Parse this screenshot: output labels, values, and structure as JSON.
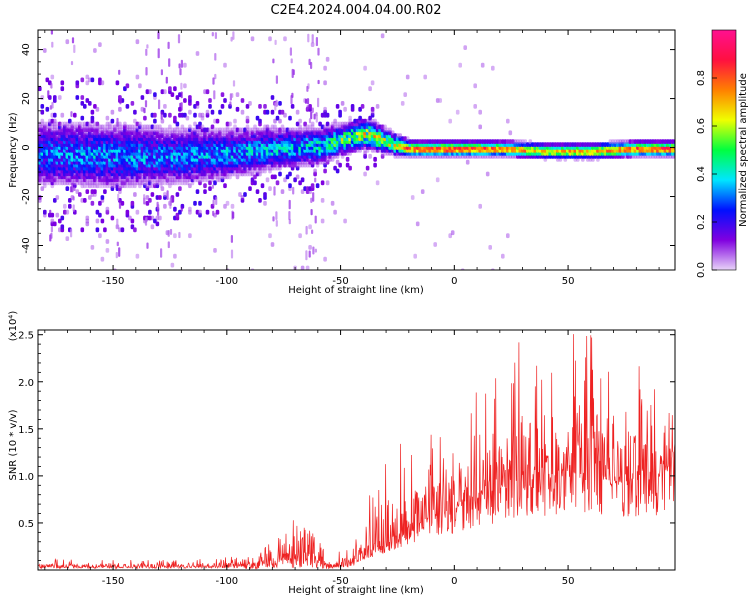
{
  "title": "C2E4.2024.004.04.00.R02",
  "chart_data": [
    {
      "type": "heatmap",
      "xlabel": "Height of straight line (km)",
      "ylabel": "Frequency (Hz)",
      "xlim": [
        -183,
        97
      ],
      "ylim": [
        -50,
        48
      ],
      "xticks": [
        -150,
        -100,
        -50,
        0,
        50
      ],
      "xtick_labels": [
        "-150",
        "-100",
        "-50",
        "0",
        "50"
      ],
      "yticks": [
        -40,
        -20,
        0,
        20,
        40
      ],
      "ytick_labels": [
        "-40",
        "-20",
        "0",
        "20",
        "40"
      ],
      "colorbar": {
        "label": "Normalized spectral amplitude",
        "range": [
          0,
          1
        ],
        "ticks": [
          0.0,
          0.2,
          0.4,
          0.6,
          0.8
        ],
        "tick_labels": [
          "0.0",
          "0.2",
          "0.4",
          "0.6",
          "0.8"
        ],
        "colors": [
          "#e8d4f8",
          "#8000e0",
          "#0010ff",
          "#00e6ff",
          "#00ff40",
          "#f0ff00",
          "#ff8000",
          "#ff1040",
          "#ff1090"
        ]
      },
      "ridge": {
        "x": [
          -183,
          -150,
          -120,
          -100,
          -80,
          -60,
          -45,
          -38,
          -28,
          -20,
          0,
          20,
          40,
          60,
          80,
          97
        ],
        "center_freq": [
          -2,
          -3,
          -3,
          -2,
          0,
          1,
          5,
          6,
          2,
          0,
          0,
          0,
          -1,
          -1,
          0,
          0
        ],
        "half_width": [
          9,
          9,
          8,
          7,
          6,
          5,
          4,
          4,
          3,
          2,
          2,
          2,
          2,
          2,
          2,
          2
        ],
        "peak_amplitude": [
          0.3,
          0.32,
          0.3,
          0.33,
          0.35,
          0.4,
          0.55,
          0.6,
          0.62,
          0.85,
          0.9,
          0.8,
          0.7,
          0.75,
          0.85,
          0.9
        ]
      }
    },
    {
      "type": "line",
      "xlabel": "Height of straight line (km)",
      "ylabel": "SNR (10 * v/v)",
      "y_multiplier": "(x10⁴)",
      "xlim": [
        -183,
        97
      ],
      "ylim": [
        0,
        25500
      ],
      "xticks": [
        -150,
        -100,
        -50,
        0,
        50
      ],
      "xtick_labels": [
        "-150",
        "-100",
        "-50",
        "0",
        "50"
      ],
      "yticks": [
        5000,
        10000,
        15000,
        20000,
        25000
      ],
      "ytick_labels": [
        "0.5",
        "1.0",
        "1.5",
        "2.0",
        "2.5"
      ],
      "color": "#ee2222",
      "envelope": {
        "x": [
          -183,
          -150,
          -120,
          -90,
          -80,
          -70,
          -60,
          -55,
          -45,
          -40,
          -30,
          -20,
          -10,
          0,
          10,
          20,
          30,
          40,
          50,
          60,
          70,
          80,
          90,
          97
        ],
        "baseline": [
          300,
          300,
          300,
          400,
          600,
          800,
          600,
          300,
          500,
          1500,
          3000,
          4500,
          5500,
          6500,
          7500,
          8500,
          9500,
          9500,
          10000,
          9500,
          9000,
          9500,
          9500,
          12000
        ],
        "peak": [
          1200,
          1100,
          1100,
          1600,
          3000,
          5500,
          3500,
          1200,
          3000,
          7500,
          12500,
          15000,
          14500,
          15500,
          19000,
          21500,
          25500,
          24000,
          25500,
          25000,
          21000,
          22500,
          19000,
          17000
        ]
      }
    }
  ]
}
